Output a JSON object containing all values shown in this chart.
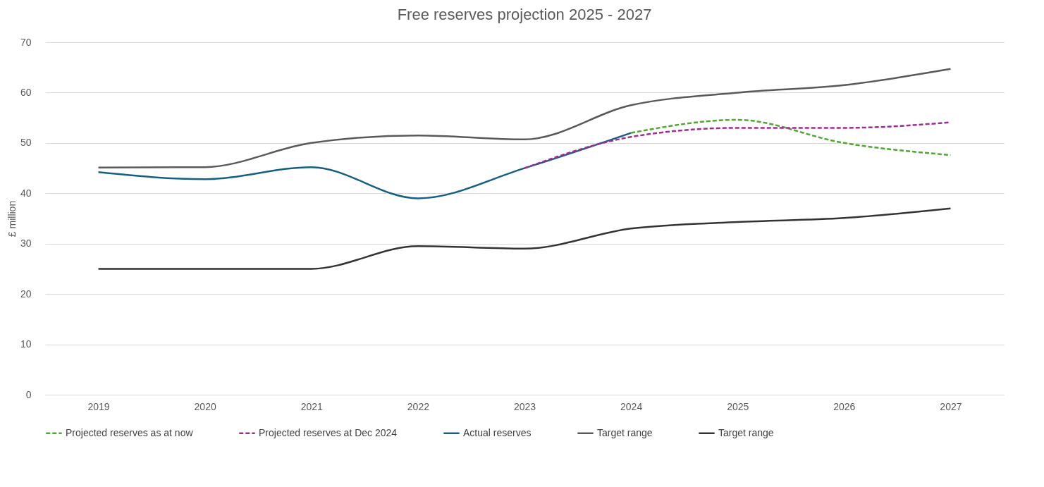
{
  "chart_data": {
    "type": "line",
    "title": "Free reserves projection 2025 - 2027",
    "ylabel": "£ million",
    "categories": [
      "2019",
      "2020",
      "2021",
      "2022",
      "2023",
      "2024",
      "2025",
      "2026",
      "2027"
    ],
    "series": [
      {
        "name": "Projected reserves as at now",
        "color": "#4ea72e",
        "line_style": "dashed",
        "values": [
          null,
          null,
          null,
          null,
          null,
          52,
          54.6,
          50,
          47.6
        ]
      },
      {
        "name": "Projected reserves at Dec 2024",
        "color": "#a02b93",
        "line_style": "dashed",
        "values": [
          null,
          null,
          null,
          null,
          45,
          51.2,
          53,
          53,
          54.1
        ]
      },
      {
        "name": "Actual reserves",
        "color": "#156082",
        "line_style": "solid",
        "values": [
          44.2,
          42.8,
          45.2,
          39,
          45,
          52,
          null,
          null,
          null
        ]
      },
      {
        "name": "Target range",
        "color": "#595959",
        "line_style": "solid",
        "values": [
          45.1,
          45.2,
          50,
          51.5,
          50.7,
          57.5,
          60,
          61.5,
          64.7
        ]
      },
      {
        "name": "Target range",
        "color": "#333333",
        "line_style": "solid",
        "values": [
          25,
          25,
          25,
          29.5,
          29,
          33,
          34.3,
          35.1,
          37
        ]
      }
    ],
    "ylim": [
      0,
      70
    ],
    "yticks": [
      0,
      10,
      20,
      30,
      40,
      50,
      60,
      70
    ],
    "grid": "y",
    "legend": "bottom",
    "marker": "none"
  }
}
